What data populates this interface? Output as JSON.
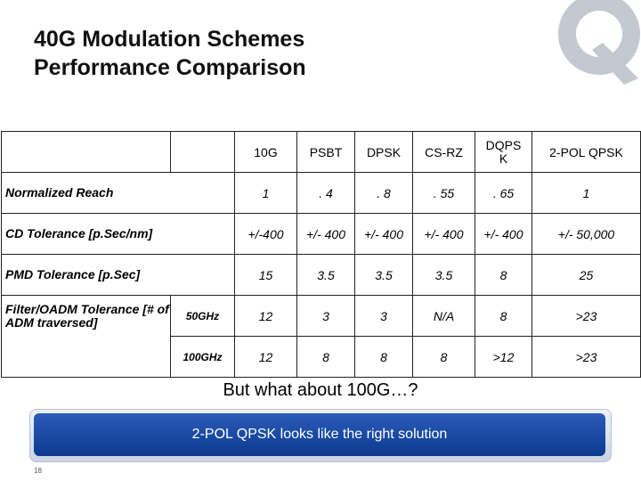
{
  "slide": {
    "title_line1": "40G Modulation Schemes",
    "title_line2": "Performance Comparison",
    "question": "But what about 100G…?",
    "banner": "2-POL QPSK looks like the right solution",
    "page_number": "18"
  },
  "table": {
    "headers": [
      "10G",
      "PSBT",
      "DPSK",
      "CS-RZ",
      "DQPS\nK",
      "2-POL QPSK"
    ],
    "rows": [
      {
        "label": "Normalized Reach",
        "values": [
          "1",
          ". 4",
          ". 8",
          ". 55",
          ". 65",
          "1"
        ]
      },
      {
        "label": "CD Tolerance [p.Sec/nm]",
        "values": [
          "+/-400",
          "+/- 400",
          "+/- 400",
          "+/- 400",
          "+/- 400",
          "+/- 50,000"
        ]
      },
      {
        "label": "PMD Tolerance [p.Sec]",
        "values": [
          "15",
          "3.5",
          "3.5",
          "3.5",
          "8",
          "25"
        ]
      },
      {
        "label": "Filter/OADM Tolerance [# of ADM traversed]",
        "sub": "50GHz",
        "values": [
          "12",
          "3",
          "3",
          "N/A",
          "8",
          ">23"
        ]
      },
      {
        "sub": "100GHz",
        "values": [
          "12",
          "8",
          "8",
          "8",
          ">12",
          ">23"
        ]
      }
    ]
  },
  "colors": {
    "banner": "#1a4aa5",
    "logo": "#c4c8d0"
  }
}
